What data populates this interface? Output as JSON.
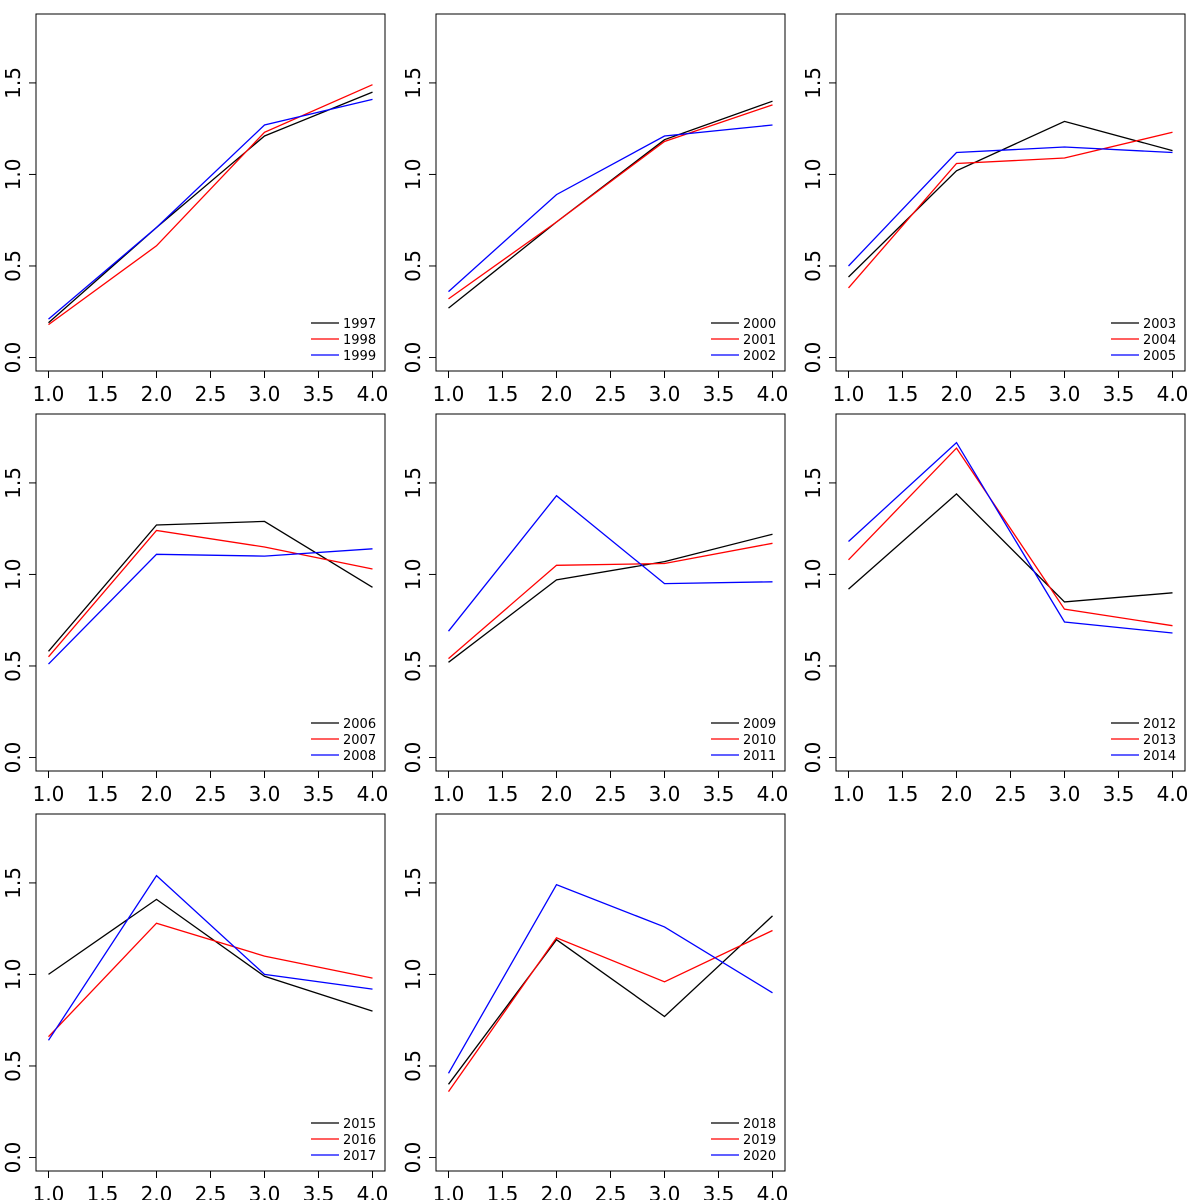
{
  "layout": {
    "rows": 3,
    "cols": 3
  },
  "colors": {
    "series1": "#000000",
    "series2": "#ff0000",
    "series3": "#0000ff"
  },
  "chart_data": [
    {
      "type": "line",
      "x": [
        1,
        2,
        3,
        4
      ],
      "xlim": [
        1,
        4
      ],
      "ylim": [
        0,
        1.8
      ],
      "xticks": [
        "1.0",
        "1.5",
        "2.0",
        "2.5",
        "3.0",
        "3.5",
        "4.0"
      ],
      "yticks": [
        "0.0",
        "0.5",
        "1.0",
        "1.5"
      ],
      "legend_position": "bottom-right",
      "series": [
        {
          "name": "1997",
          "values": [
            0.19,
            0.71,
            1.21,
            1.45
          ]
        },
        {
          "name": "1998",
          "values": [
            0.18,
            0.61,
            1.23,
            1.49
          ]
        },
        {
          "name": "1999",
          "values": [
            0.21,
            0.71,
            1.27,
            1.41
          ]
        }
      ]
    },
    {
      "type": "line",
      "x": [
        1,
        2,
        3,
        4
      ],
      "xlim": [
        1,
        4
      ],
      "ylim": [
        0,
        1.8
      ],
      "xticks": [
        "1.0",
        "1.5",
        "2.0",
        "2.5",
        "3.0",
        "3.5",
        "4.0"
      ],
      "yticks": [
        "0.0",
        "0.5",
        "1.0",
        "1.5"
      ],
      "legend_position": "bottom-right",
      "series": [
        {
          "name": "2000",
          "values": [
            0.27,
            0.74,
            1.19,
            1.4
          ]
        },
        {
          "name": "2001",
          "values": [
            0.32,
            0.74,
            1.18,
            1.38
          ]
        },
        {
          "name": "2002",
          "values": [
            0.36,
            0.89,
            1.21,
            1.27
          ]
        }
      ]
    },
    {
      "type": "line",
      "x": [
        1,
        2,
        3,
        4
      ],
      "xlim": [
        1,
        4
      ],
      "ylim": [
        0,
        1.8
      ],
      "xticks": [
        "1.0",
        "1.5",
        "2.0",
        "2.5",
        "3.0",
        "3.5",
        "4.0"
      ],
      "yticks": [
        "0.0",
        "0.5",
        "1.0",
        "1.5"
      ],
      "legend_position": "bottom-right",
      "series": [
        {
          "name": "2003",
          "values": [
            0.44,
            1.02,
            1.29,
            1.13
          ]
        },
        {
          "name": "2004",
          "values": [
            0.38,
            1.06,
            1.09,
            1.23
          ]
        },
        {
          "name": "2005",
          "values": [
            0.5,
            1.12,
            1.15,
            1.12
          ]
        }
      ]
    },
    {
      "type": "line",
      "x": [
        1,
        2,
        3,
        4
      ],
      "xlim": [
        1,
        4
      ],
      "ylim": [
        0,
        1.8
      ],
      "xticks": [
        "1.0",
        "1.5",
        "2.0",
        "2.5",
        "3.0",
        "3.5",
        "4.0"
      ],
      "yticks": [
        "0.0",
        "0.5",
        "1.0",
        "1.5"
      ],
      "legend_position": "bottom-right",
      "series": [
        {
          "name": "2006",
          "values": [
            0.58,
            1.27,
            1.29,
            0.93
          ]
        },
        {
          "name": "2007",
          "values": [
            0.55,
            1.24,
            1.15,
            1.03
          ]
        },
        {
          "name": "2008",
          "values": [
            0.51,
            1.11,
            1.1,
            1.14
          ]
        }
      ]
    },
    {
      "type": "line",
      "x": [
        1,
        2,
        3,
        4
      ],
      "xlim": [
        1,
        4
      ],
      "ylim": [
        0,
        1.8
      ],
      "xticks": [
        "1.0",
        "1.5",
        "2.0",
        "2.5",
        "3.0",
        "3.5",
        "4.0"
      ],
      "yticks": [
        "0.0",
        "0.5",
        "1.0",
        "1.5"
      ],
      "legend_position": "bottom-right",
      "series": [
        {
          "name": "2009",
          "values": [
            0.52,
            0.97,
            1.07,
            1.22
          ]
        },
        {
          "name": "2010",
          "values": [
            0.54,
            1.05,
            1.06,
            1.17
          ]
        },
        {
          "name": "2011",
          "values": [
            0.69,
            1.43,
            0.95,
            0.96
          ]
        }
      ]
    },
    {
      "type": "line",
      "x": [
        1,
        2,
        3,
        4
      ],
      "xlim": [
        1,
        4
      ],
      "ylim": [
        0,
        1.8
      ],
      "xticks": [
        "1.0",
        "1.5",
        "2.0",
        "2.5",
        "3.0",
        "3.5",
        "4.0"
      ],
      "yticks": [
        "0.0",
        "0.5",
        "1.0",
        "1.5"
      ],
      "legend_position": "bottom-right",
      "series": [
        {
          "name": "2012",
          "values": [
            0.92,
            1.44,
            0.85,
            0.9
          ]
        },
        {
          "name": "2013",
          "values": [
            1.08,
            1.69,
            0.81,
            0.72
          ]
        },
        {
          "name": "2014",
          "values": [
            1.18,
            1.72,
            0.74,
            0.68
          ]
        }
      ]
    },
    {
      "type": "line",
      "x": [
        1,
        2,
        3,
        4
      ],
      "xlim": [
        1,
        4
      ],
      "ylim": [
        0,
        1.8
      ],
      "xticks": [
        "1.0",
        "1.5",
        "2.0",
        "2.5",
        "3.0",
        "3.5",
        "4.0"
      ],
      "yticks": [
        "0.0",
        "0.5",
        "1.0",
        "1.5"
      ],
      "legend_position": "bottom-right",
      "series": [
        {
          "name": "2015",
          "values": [
            1.0,
            1.41,
            0.99,
            0.8
          ]
        },
        {
          "name": "2016",
          "values": [
            0.66,
            1.28,
            1.1,
            0.98
          ]
        },
        {
          "name": "2017",
          "values": [
            0.64,
            1.54,
            1.0,
            0.92
          ]
        }
      ]
    },
    {
      "type": "line",
      "x": [
        1,
        2,
        3,
        4
      ],
      "xlim": [
        1,
        4
      ],
      "ylim": [
        0,
        1.8
      ],
      "xticks": [
        "1.0",
        "1.5",
        "2.0",
        "2.5",
        "3.0",
        "3.5",
        "4.0"
      ],
      "yticks": [
        "0.0",
        "0.5",
        "1.0",
        "1.5"
      ],
      "legend_position": "bottom-right",
      "series": [
        {
          "name": "2018",
          "values": [
            0.4,
            1.19,
            0.77,
            1.32
          ]
        },
        {
          "name": "2019",
          "values": [
            0.36,
            1.2,
            0.96,
            1.24
          ]
        },
        {
          "name": "2020",
          "values": [
            0.46,
            1.49,
            1.26,
            0.9
          ]
        }
      ]
    }
  ]
}
